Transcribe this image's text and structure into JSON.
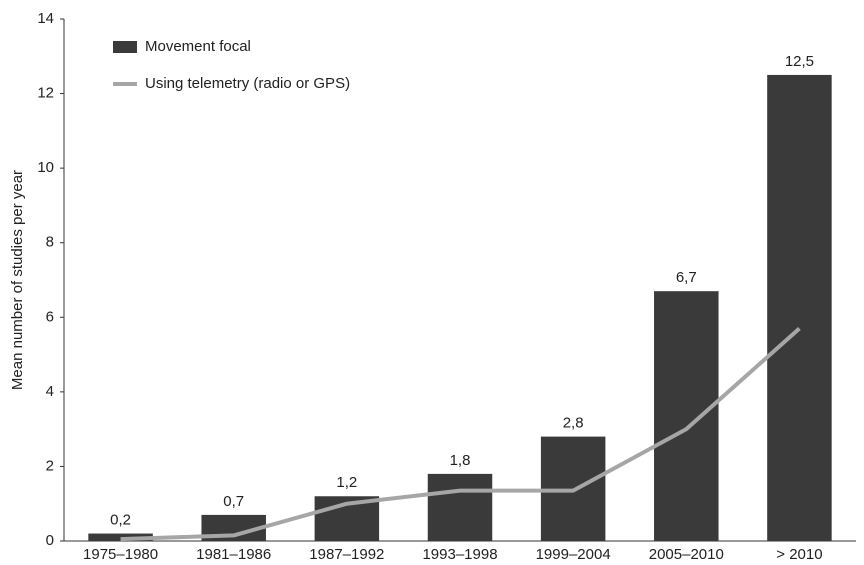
{
  "chart_data": {
    "type": "bar",
    "y_label": "Mean number of studies per year",
    "categories": [
      "1975–1980",
      "1981–1986",
      "1987–1992",
      "1993–1998",
      "1999–2004",
      "2005–2010",
      "> 2010"
    ],
    "series": [
      {
        "name": "Movement focal",
        "type": "bar",
        "color": "#3a3a3a",
        "values": [
          0.2,
          0.7,
          1.2,
          1.8,
          2.8,
          6.7,
          12.5
        ],
        "value_labels": [
          "0,2",
          "0,7",
          "1,2",
          "1,8",
          "2,8",
          "6,7",
          "12,5"
        ]
      },
      {
        "name": "Using telemetry (radio or GPS)",
        "type": "line",
        "color": "#a6a6a6",
        "values": [
          0.05,
          0.15,
          1.0,
          1.35,
          1.35,
          3.0,
          5.7
        ]
      }
    ],
    "ylim": [
      0,
      14
    ],
    "yticks": [
      0,
      2,
      4,
      6,
      8,
      10,
      12,
      14
    ],
    "legend": "upper-left",
    "grid": false
  }
}
